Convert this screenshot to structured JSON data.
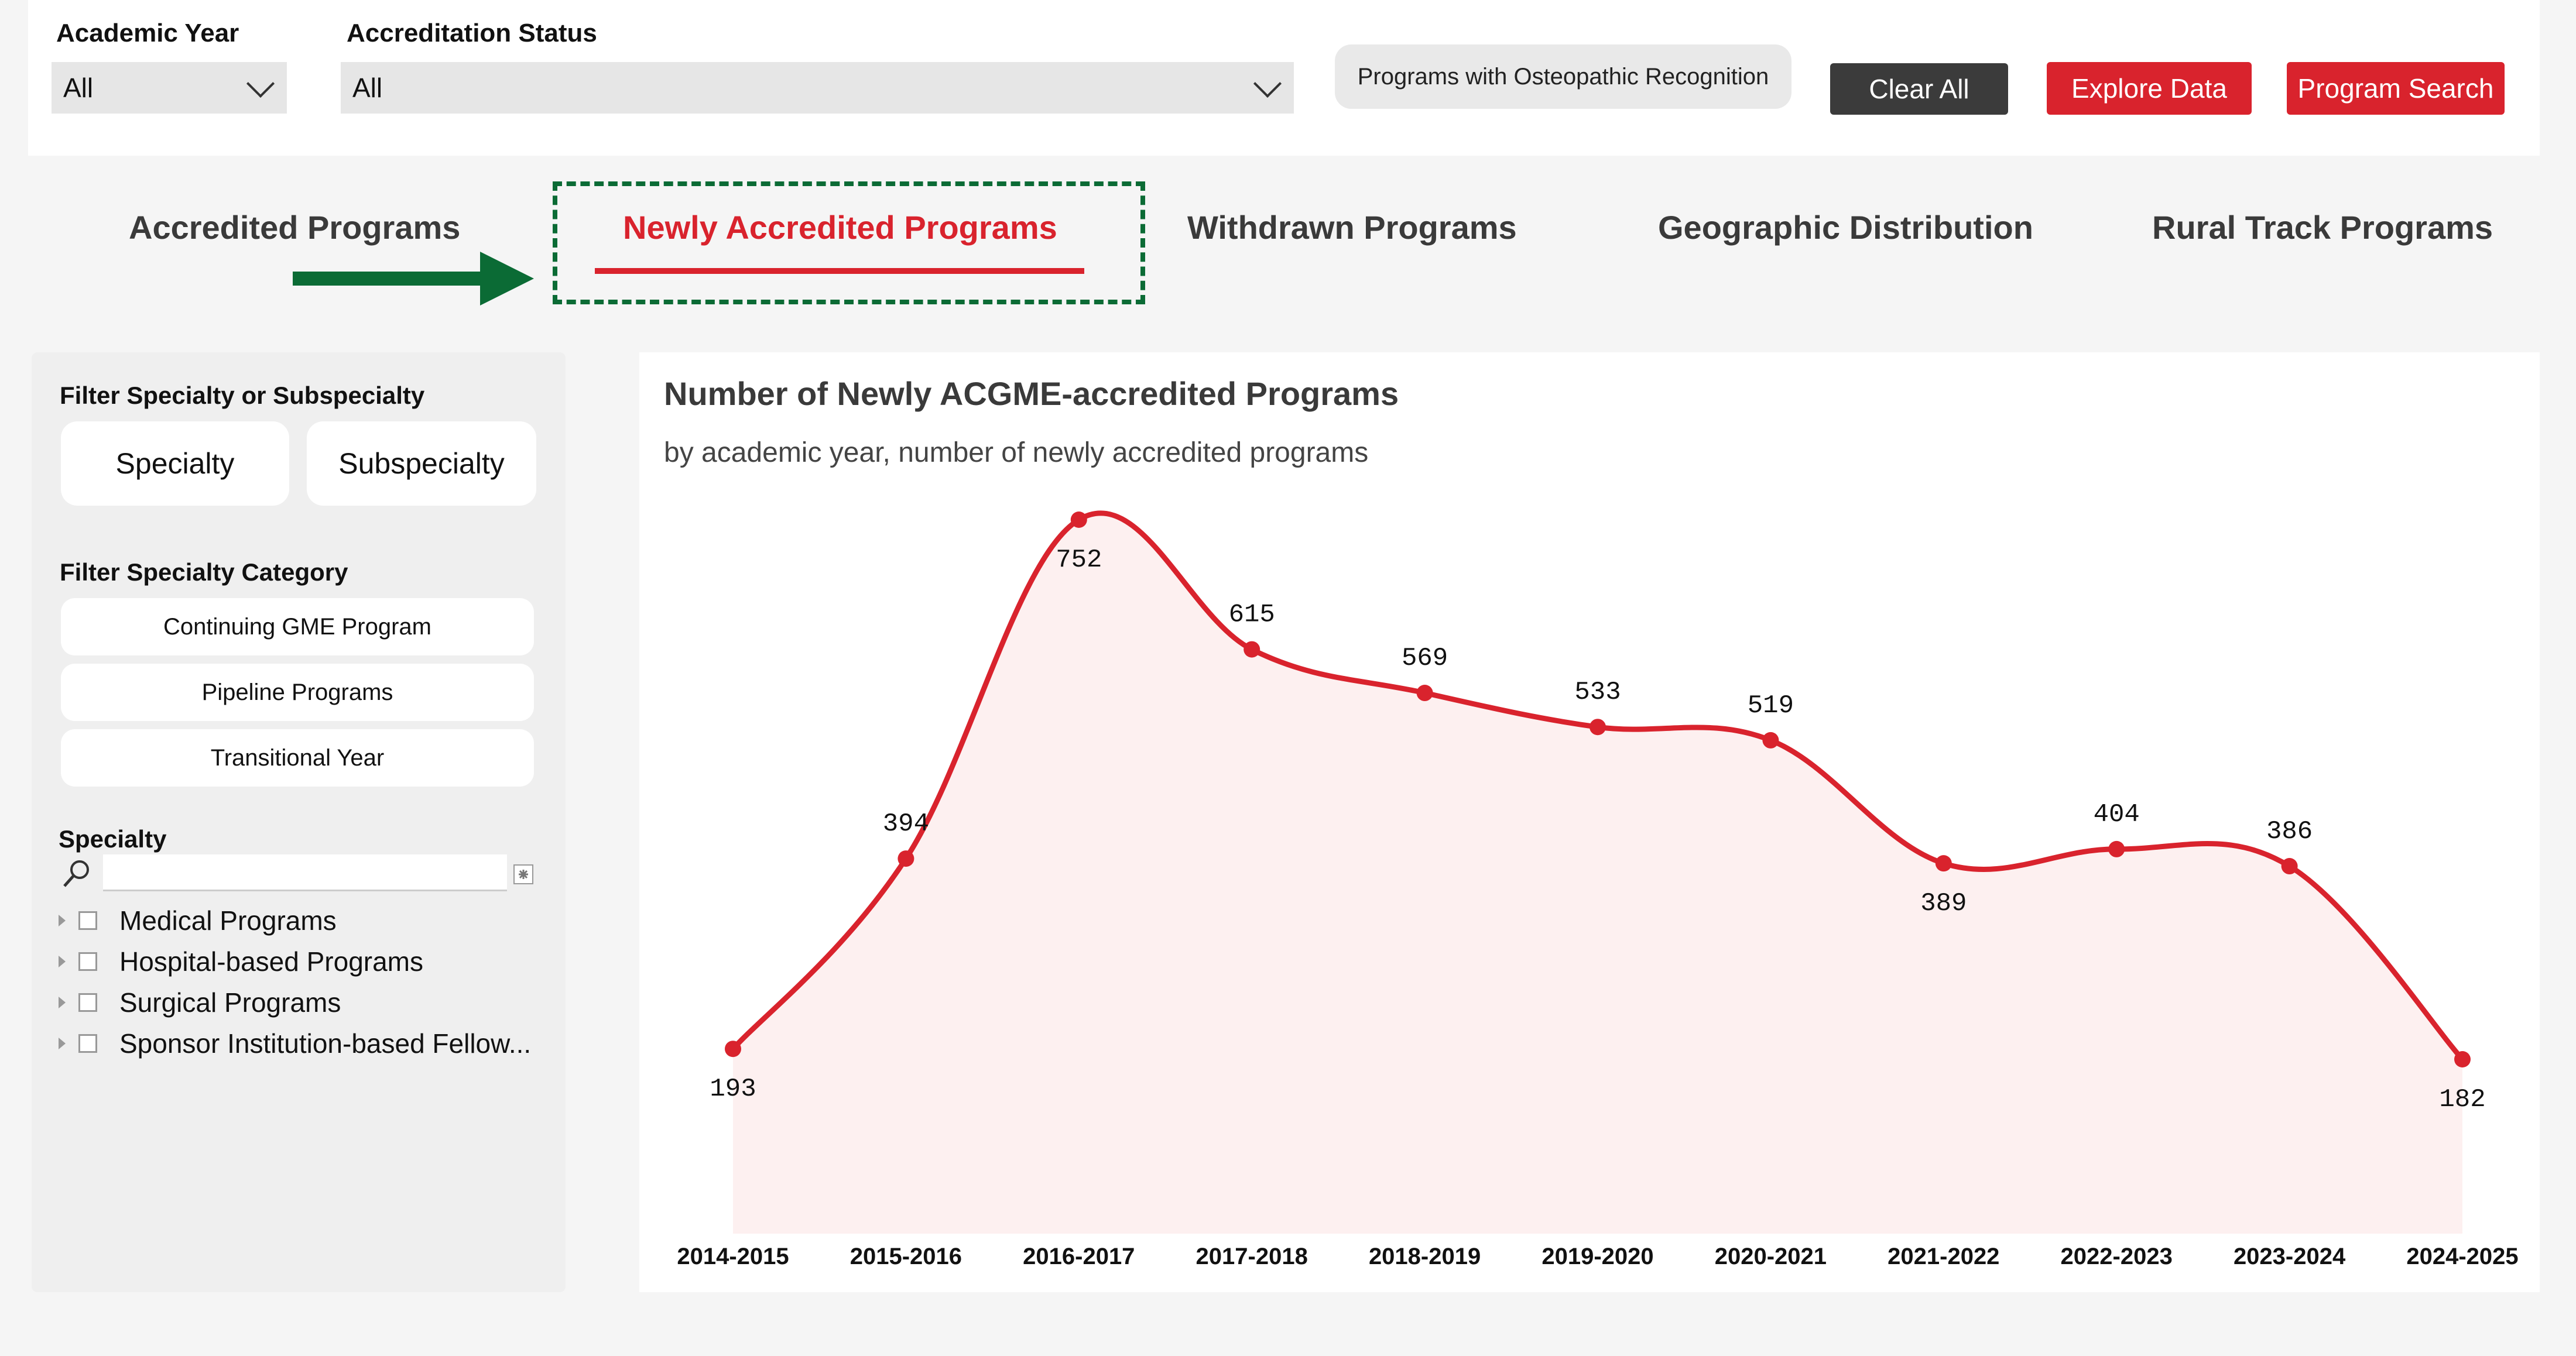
{
  "filters": {
    "academic_year": {
      "label": "Academic Year",
      "value": "All"
    },
    "accreditation_status": {
      "label": "Accreditation Status",
      "value": "All"
    },
    "osteopathic_button": "Programs with Osteopathic Recognition",
    "clear_all": "Clear All",
    "explore_data": "Explore Data",
    "program_search": "Program Search"
  },
  "tabs": [
    {
      "label": "Accredited Programs",
      "active": false
    },
    {
      "label": "Newly Accredited Programs",
      "active": true
    },
    {
      "label": "Withdrawn Programs",
      "active": false
    },
    {
      "label": "Geographic Distribution",
      "active": false
    },
    {
      "label": "Rural Track Programs",
      "active": false
    }
  ],
  "annotation": {
    "arrow_color": "#0b6b35",
    "highlight_box_color": "#0b6b35"
  },
  "sidebar": {
    "filter_specialty_title": "Filter Specialty or Subspecialty",
    "specialty_button": "Specialty",
    "subspecialty_button": "Subspecialty",
    "category_title": "Filter Specialty Category",
    "categories": [
      "Continuing GME Program",
      "Pipeline Programs",
      "Transitional Year"
    ],
    "specialty_title": "Specialty",
    "search_icon": "search-icon",
    "tree_items": [
      "Medical Programs",
      "Hospital-based Programs",
      "Surgical Programs",
      "Sponsor Institution-based Fellow..."
    ]
  },
  "chart": {
    "title": "Number of Newly ACGME-accredited Programs",
    "subtitle": "by academic year, number of newly accredited programs"
  },
  "chart_data": {
    "type": "area",
    "title": "Number of Newly ACGME-accredited Programs",
    "subtitle": "by academic year, number of newly accredited programs",
    "categories": [
      "2014-2015",
      "2015-2016",
      "2016-2017",
      "2017-2018",
      "2018-2019",
      "2019-2020",
      "2020-2021",
      "2021-2022",
      "2022-2023",
      "2023-2024",
      "2024-2025"
    ],
    "values": [
      193,
      394,
      752,
      615,
      569,
      533,
      519,
      389,
      404,
      386,
      182
    ],
    "label_below": [
      true,
      false,
      true,
      false,
      false,
      false,
      false,
      true,
      false,
      false,
      true
    ],
    "line_color": "#d9232d",
    "fill_color": "#fdf0f0",
    "grid": false,
    "legend": "none"
  },
  "colors": {
    "accent": "#d9232d",
    "dark_button": "#3b3b3b"
  }
}
